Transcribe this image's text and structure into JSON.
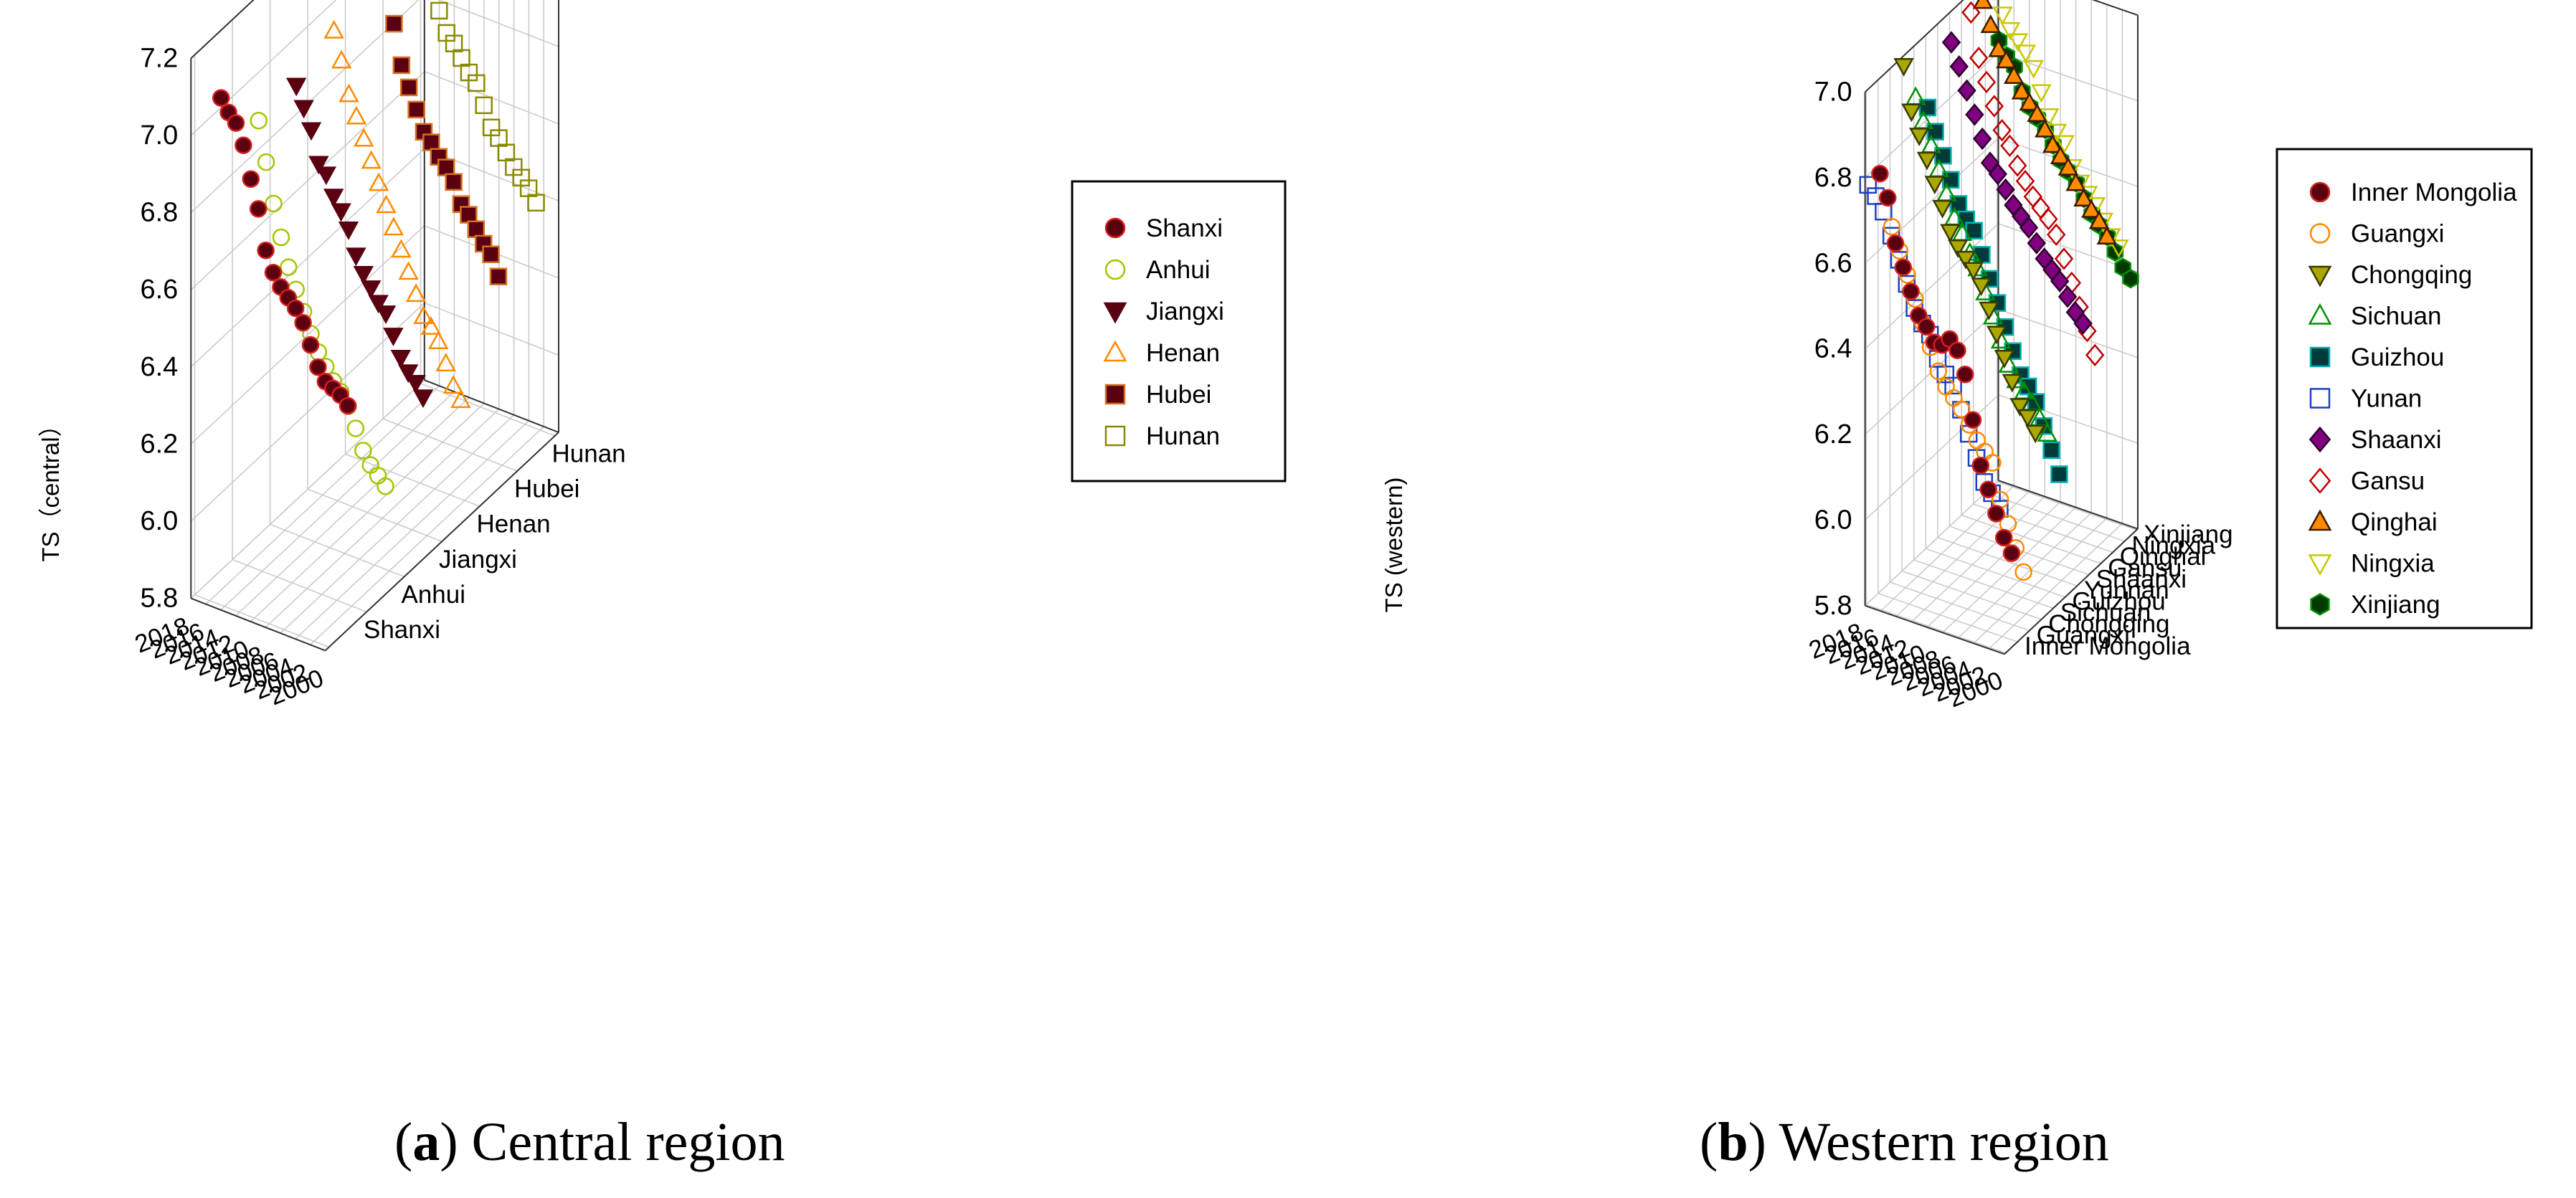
{
  "captions": [
    {
      "letter": "a",
      "text": "Central region"
    },
    {
      "letter": "b",
      "text": "Western region"
    }
  ],
  "chart_data": [
    {
      "type": "scatter",
      "subtype": "3d-scatter",
      "caption": "(a) Central region",
      "title": "",
      "xlabel": "",
      "ylabel": "",
      "zlabel": "TS（central）",
      "x_ticks": [
        "2000",
        "2002",
        "2004",
        "2006",
        "2008",
        "2010",
        "2012",
        "2014",
        "2016",
        "2018"
      ],
      "z_ticks": [
        "5.8",
        "6.0",
        "6.2",
        "6.4",
        "6.6",
        "6.8",
        "7.0",
        "7.2"
      ],
      "zlim": [
        5.8,
        7.2
      ],
      "grid": true,
      "legend_position": "right",
      "provinces": [
        "Shanxi",
        "Anhui",
        "Jiangxi",
        "Henan",
        "Hubei",
        "Hunan"
      ],
      "years": [
        2000,
        2001,
        2002,
        2003,
        2004,
        2005,
        2006,
        2007,
        2008,
        2009,
        2010,
        2011,
        2012,
        2013,
        2014,
        2015,
        2016,
        2017
      ],
      "series": [
        {
          "name": "Shanxi",
          "marker": "circle",
          "fill": "#5a0010",
          "stroke": "#d42020",
          "values": [
            6.38,
            6.4,
            6.41,
            6.42,
            6.45,
            6.5,
            6.55,
            6.58,
            6.6,
            6.62,
            6.65,
            6.7,
            6.8,
            6.87,
            6.95,
            7.0,
            7.02,
            7.05
          ]
        },
        {
          "name": "Anhui",
          "marker": "circle",
          "fill": "none",
          "stroke": "#a8c400",
          "values": [
            6.08,
            6.1,
            6.12,
            6.15,
            6.2,
            6.25,
            6.28,
            6.3,
            6.33,
            6.36,
            6.4,
            6.45,
            6.5,
            6.55,
            6.62,
            6.7,
            6.8,
            6.9
          ]
        },
        {
          "name": "Jiangxi",
          "marker": "triangle-down",
          "fill": "#5a0010",
          "stroke": "#5a0010",
          "values": [
            6.22,
            6.25,
            6.27,
            6.3,
            6.35,
            6.4,
            6.42,
            6.45,
            6.48,
            6.52,
            6.58,
            6.62,
            6.65,
            6.7,
            6.72,
            6.8,
            6.85,
            6.9
          ]
        },
        {
          "name": "Henan",
          "marker": "triangle-up",
          "fill": "none",
          "stroke": "#ff8a00",
          "values": [
            6.12,
            6.15,
            6.2,
            6.25,
            6.28,
            6.3,
            6.35,
            6.4,
            6.45,
            6.5,
            6.55,
            6.6,
            6.65,
            6.7,
            6.75,
            6.8,
            6.88,
            6.95
          ]
        },
        {
          "name": "Hubei",
          "marker": "square",
          "fill": "#5a0010",
          "stroke": "#d47020",
          "values": [
            6.35,
            6.4,
            6.42,
            6.45,
            6.48,
            6.5,
            6.55,
            6.58,
            6.6,
            6.63,
            6.65,
            6.7,
            6.75,
            6.8,
            6.9,
            7.0,
            7.1,
            7.15
          ]
        },
        {
          "name": "Hunan",
          "marker": "square",
          "fill": "none",
          "stroke": "#8a8a00",
          "values": [
            6.45,
            6.48,
            6.5,
            6.52,
            6.55,
            6.58,
            6.6,
            6.65,
            6.7,
            6.72,
            6.75,
            6.78,
            6.8,
            6.85,
            6.9,
            7.0,
            7.1,
            7.2
          ]
        }
      ]
    },
    {
      "type": "scatter",
      "subtype": "3d-scatter",
      "caption": "(b) Western region",
      "title": "",
      "xlabel": "",
      "ylabel": "",
      "zlabel": "TS (western)",
      "x_ticks": [
        "2000",
        "2002",
        "2004",
        "2006",
        "2008",
        "2010",
        "2012",
        "2014",
        "2016",
        "2018"
      ],
      "z_ticks": [
        "5.8",
        "6.0",
        "6.2",
        "6.4",
        "6.6",
        "6.8",
        "7.0"
      ],
      "zlim": [
        5.8,
        7.0
      ],
      "grid": true,
      "legend_position": "right",
      "provinces": [
        "Inner Mongolia",
        "Guangxi",
        "Chongqing",
        "Sichuan",
        "Guizhou",
        "Yunnan",
        "Shaanxi",
        "Gansu",
        "Qinghai",
        "Ningxia",
        "Xinjiang"
      ],
      "years": [
        2000,
        2001,
        2002,
        2003,
        2004,
        2005,
        2006,
        2007,
        2008,
        2009,
        2010,
        2011,
        2012,
        2013,
        2014,
        2015,
        2016,
        2017
      ],
      "series": [
        {
          "name": "Inner Mongolia",
          "marker": "circle",
          "fill": "#5a0010",
          "stroke": "#d42020",
          "values": [
            6.02,
            6.05,
            6.1,
            6.15,
            6.2,
            6.3,
            6.4,
            6.45,
            6.47,
            6.45,
            6.45,
            6.48,
            6.5,
            6.55,
            6.6,
            6.65,
            6.75,
            6.8
          ]
        },
        {
          "name": "Guangxi",
          "marker": "circle",
          "fill": "none",
          "stroke": "#ff8a00",
          "values": [
            5.95,
            6.0,
            6.05,
            6.1,
            6.18,
            6.2,
            6.22,
            6.25,
            6.28,
            6.3,
            6.32,
            6.35,
            6.4,
            6.45,
            6.5,
            6.55,
            6.6,
            6.65
          ]
        },
        {
          "name": "Chongqing",
          "marker": "triangle-down",
          "fill": "#a8a800",
          "stroke": "#3a3a00",
          "values": [
            6.25,
            6.28,
            6.3,
            6.35,
            6.4,
            6.45,
            6.5,
            6.55,
            6.58,
            6.6,
            6.62,
            6.65,
            6.7,
            6.75,
            6.8,
            6.85,
            6.9,
            7.0
          ]
        },
        {
          "name": "Sichuan",
          "marker": "triangle-up",
          "fill": "none",
          "stroke": "#009000",
          "values": [
            6.22,
            6.25,
            6.28,
            6.3,
            6.32,
            6.35,
            6.4,
            6.45,
            6.5,
            6.55,
            6.58,
            6.62,
            6.65,
            6.7,
            6.75,
            6.8,
            6.85,
            6.9
          ]
        },
        {
          "name": "Guizhou",
          "marker": "square",
          "fill": "#003a3a",
          "stroke": "#00b0b0",
          "values": [
            6.1,
            6.15,
            6.2,
            6.25,
            6.28,
            6.3,
            6.35,
            6.4,
            6.45,
            6.5,
            6.55,
            6.6,
            6.62,
            6.65,
            6.7,
            6.75,
            6.8,
            6.85
          ]
        },
        {
          "name": "Yunan",
          "marker": "square",
          "fill": "none",
          "stroke": "#2040c0",
          "values": [
            6.15,
            6.18,
            6.2,
            6.25,
            6.3,
            6.35,
            6.4,
            6.42,
            6.45,
            6.5,
            6.52,
            6.55,
            6.6,
            6.65,
            6.7,
            6.75,
            6.78,
            6.8
          ]
        },
        {
          "name": "Shaanxi",
          "marker": "diamond",
          "fill": "#800080",
          "stroke": "#300030",
          "values": [
            6.4,
            6.42,
            6.45,
            6.48,
            6.5,
            6.52,
            6.55,
            6.58,
            6.6,
            6.62,
            6.65,
            6.68,
            6.7,
            6.75,
            6.8,
            6.85,
            6.9,
            6.95
          ]
        },
        {
          "name": "Gansu",
          "marker": "diamond",
          "fill": "none",
          "stroke": "#c00000",
          "values": [
            6.3,
            6.35,
            6.4,
            6.45,
            6.5,
            6.55,
            6.58,
            6.6,
            6.62,
            6.65,
            6.68,
            6.72,
            6.75,
            6.8,
            6.85,
            6.9,
            7.0,
            7.05
          ]
        },
        {
          "name": "Qinghai",
          "marker": "triangle-up",
          "fill": "#ff8a00",
          "stroke": "#3a1a00",
          "values": [
            6.55,
            6.58,
            6.6,
            6.62,
            6.65,
            6.68,
            6.7,
            6.72,
            6.75,
            6.78,
            6.8,
            6.82,
            6.85,
            6.88,
            6.9,
            6.95,
            7.0,
            7.05
          ]
        },
        {
          "name": "Ningxia",
          "marker": "triangle-down",
          "fill": "none",
          "stroke": "#c8c800",
          "values": [
            6.5,
            6.52,
            6.55,
            6.58,
            6.6,
            6.62,
            6.65,
            6.7,
            6.72,
            6.75,
            6.8,
            6.85,
            6.88,
            6.9,
            6.92,
            6.95,
            7.0,
            7.05
          ]
        },
        {
          "name": "Xinjiang",
          "marker": "hexagon",
          "fill": "#003a00",
          "stroke": "#009000",
          "values": [
            6.4,
            6.42,
            6.45,
            6.48,
            6.5,
            6.52,
            6.55,
            6.58,
            6.6,
            6.62,
            6.65,
            6.68,
            6.7,
            6.72,
            6.75,
            6.8,
            6.82,
            6.85
          ]
        }
      ]
    }
  ]
}
